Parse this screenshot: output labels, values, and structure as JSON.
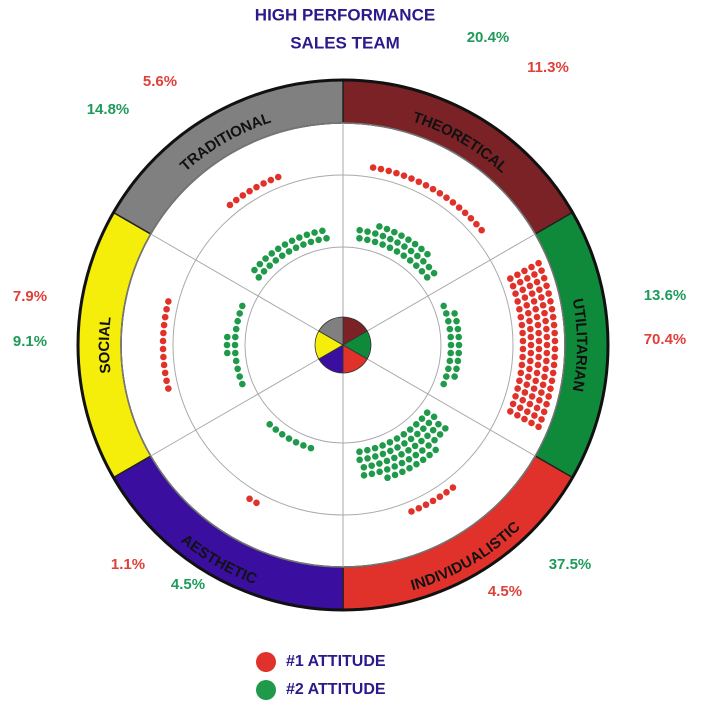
{
  "chart_data": {
    "type": "radial",
    "title": [
      "HIGH PERFORMANCE",
      "SALES TEAM"
    ],
    "legend": [
      {
        "name": "#1 ATTITUDE",
        "color": "#e0322a"
      },
      {
        "name": "#2 ATTITUDE",
        "color": "#1e9a4a"
      }
    ],
    "sectors": [
      {
        "name": "THEORETICAL",
        "color": "#7b2226",
        "values": [
          11.3,
          20.4
        ],
        "value_labels": [
          "11.3%",
          "20.4%"
        ]
      },
      {
        "name": "UTILITARIAN",
        "color": "#0f8a3a",
        "values": [
          70.4,
          13.6
        ],
        "value_labels": [
          "70.4%",
          "13.6%"
        ]
      },
      {
        "name": "INDIVIDUALISTIC",
        "color": "#e0322a",
        "values": [
          4.5,
          37.5
        ],
        "value_labels": [
          "4.5%",
          "37.5%"
        ]
      },
      {
        "name": "AESTHETIC",
        "color": "#3a0fa0",
        "values": [
          1.1,
          4.5
        ],
        "value_labels": [
          "1.1%",
          "4.5%"
        ]
      },
      {
        "name": "SOCIAL",
        "color": "#f5ee0a",
        "values": [
          7.9,
          9.1
        ],
        "value_labels": [
          "7.9%",
          "9.1%"
        ]
      },
      {
        "name": "TRADITIONAL",
        "color": "#808080",
        "values": [
          5.6,
          14.8
        ],
        "value_labels": [
          "5.6%",
          "14.8%"
        ]
      }
    ]
  }
}
